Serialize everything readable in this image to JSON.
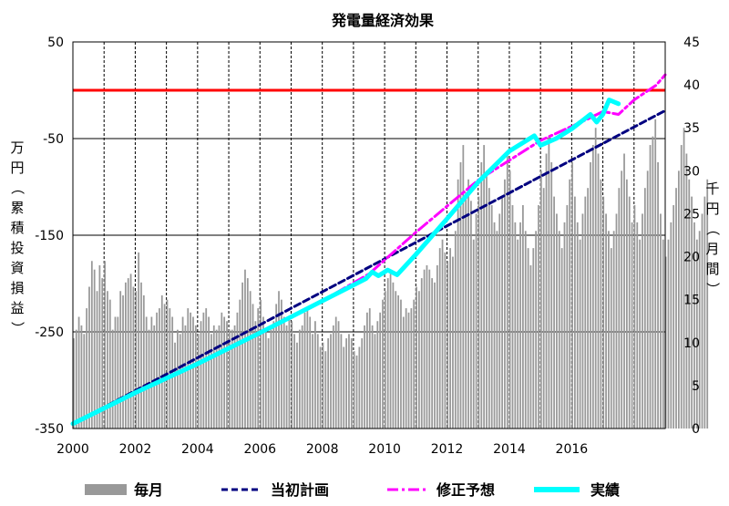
{
  "chart_data": {
    "type": "bar+line",
    "title": "発電量経済効果",
    "y_left_label": "万円（累積投資損益）",
    "y_right_label": "千円（月間）",
    "x_ticks": [
      "2000",
      "2002",
      "2004",
      "2006",
      "2008",
      "2010",
      "2012",
      "2014",
      "2016"
    ],
    "y_left_ticks": [
      "50",
      "-50",
      "-150",
      "-250",
      "-350"
    ],
    "y_right_ticks": [
      "45",
      "40",
      "35",
      "30",
      "25",
      "20",
      "15",
      "10",
      "5",
      "0"
    ],
    "y_left_range": [
      -350,
      50
    ],
    "y_right_range": [
      0,
      45
    ],
    "x_range": [
      2000,
      2019
    ],
    "grid": true,
    "reference_line": {
      "axis": "left",
      "value": 0,
      "color": "#ff0000"
    },
    "colors": {
      "monthly": "#999999",
      "plan": "#000080",
      "revised": "#ff00ff",
      "actual": "#00ffff",
      "reference": "#ff0000"
    },
    "legend": [
      {
        "key": "monthly",
        "label": "毎月"
      },
      {
        "key": "plan",
        "label": "当初計画"
      },
      {
        "key": "revised",
        "label": "修正予想"
      },
      {
        "key": "actual",
        "label": "実績"
      }
    ],
    "plan": {
      "x": [
        2000,
        2019
      ],
      "y": [
        -345,
        -21
      ]
    },
    "revised": {
      "x": [
        2000,
        2002,
        2004,
        2006,
        2008,
        2009.5,
        2011,
        2013,
        2015,
        2016.5,
        2017,
        2017.5,
        2018,
        2018.7,
        2019
      ],
      "y": [
        -345,
        -314,
        -283,
        -252,
        -218,
        -190,
        -147,
        -93,
        -52,
        -30,
        -22,
        -25,
        -10,
        5,
        16
      ]
    },
    "actual": {
      "x": [
        2000,
        2002,
        2004,
        2006,
        2008,
        2009.4,
        2009.6,
        2009.8,
        2010.1,
        2010.4,
        2011,
        2012,
        2013,
        2014,
        2014.8,
        2015,
        2015.5,
        2016,
        2016.4,
        2016.6,
        2016.8,
        2017,
        2017.2,
        2017.5
      ],
      "y": [
        -345,
        -313,
        -283,
        -251,
        -218,
        -195,
        -188,
        -192,
        -186,
        -191,
        -170,
        -133,
        -95,
        -63,
        -47,
        -57,
        -50,
        -40,
        -30,
        -25,
        -33,
        -25,
        -10,
        -14
      ]
    },
    "monthly": {
      "x_start": 2000.0,
      "step": 0.0833,
      "values": [
        10.5,
        11.5,
        13,
        12,
        11,
        14,
        16.5,
        19.5,
        18.5,
        16,
        19,
        17.5,
        19.5,
        16,
        15,
        11.5,
        13,
        13,
        16,
        15.5,
        17,
        17.5,
        18,
        16.5,
        16,
        20.5,
        17,
        15.5,
        13,
        11.5,
        13,
        12,
        13.5,
        14,
        15.5,
        14.5,
        15,
        14,
        13,
        10,
        11.5,
        11,
        13,
        12,
        14,
        13.5,
        13,
        12,
        11,
        12.5,
        13.5,
        14,
        13,
        11,
        12,
        11.5,
        12,
        13.5,
        13,
        12.5,
        11.5,
        11.5,
        12,
        13.5,
        15,
        17,
        18.5,
        17.5,
        16,
        14.5,
        12.5,
        14,
        15,
        13,
        11.5,
        10.5,
        11.5,
        12.5,
        14.5,
        16,
        15,
        13,
        12,
        13,
        12.5,
        11,
        10,
        11.5,
        12,
        13.5,
        14,
        13,
        11,
        12.5,
        11,
        9.5,
        10,
        9,
        10.5,
        11,
        12,
        13,
        12.5,
        11,
        9.5,
        10.5,
        11,
        10.5,
        9,
        8.5,
        9.5,
        10.5,
        12,
        13.5,
        14,
        12,
        11,
        12.5,
        13.5,
        15,
        16,
        17.5,
        18,
        17,
        16,
        15.5,
        15,
        13,
        14,
        13.5,
        14,
        15,
        16.5,
        16,
        17.5,
        18.5,
        19,
        18.5,
        17.5,
        17,
        19,
        21,
        22,
        20.5,
        19.5,
        21,
        20,
        23,
        29,
        31,
        33,
        27.5,
        29,
        26.5,
        22,
        25,
        27,
        31,
        33,
        30,
        28,
        26,
        24,
        23,
        25,
        27,
        29,
        32,
        30,
        26,
        24,
        22,
        24,
        26,
        23,
        21,
        19,
        21,
        23,
        26,
        30,
        28,
        32,
        34,
        31,
        27,
        25,
        23,
        21,
        24,
        26,
        29,
        31,
        27,
        24,
        22,
        25,
        27,
        28,
        31,
        33,
        35,
        32,
        29,
        27,
        25,
        23,
        21,
        23,
        25,
        28,
        30,
        32,
        29,
        27,
        24,
        26,
        24,
        22,
        25,
        28,
        30,
        33,
        34,
        36,
        31,
        25,
        22,
        20,
        22,
        24,
        26,
        28,
        30,
        33,
        35,
        32,
        29,
        27,
        24,
        22,
        23,
        25,
        27,
        29
      ]
    }
  }
}
